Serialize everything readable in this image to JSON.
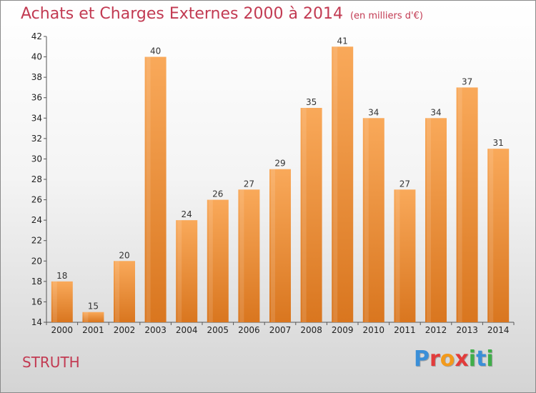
{
  "header": {
    "title": "Achats et Charges Externes 2000 à 2014",
    "subtitle": "(en milliers d'€)"
  },
  "footer": {
    "commune": "STRUTH",
    "logo_letters": [
      "P",
      "r",
      "o",
      "x",
      "i",
      "t",
      "i"
    ]
  },
  "colors": {
    "title": "#c23a52",
    "bar_top": "#f9a95a",
    "bar_bottom": "#d9761f",
    "logo": [
      "#3a8fd8",
      "#e23b3b",
      "#f39a1b",
      "#e23b3b",
      "#3fae49",
      "#3a8fd8",
      "#3fae49"
    ]
  },
  "chart_data": {
    "type": "bar",
    "title": "Achats et Charges Externes 2000 à 2014",
    "subtitle": "(en milliers d'€)",
    "categories": [
      "2000",
      "2001",
      "2002",
      "2003",
      "2004",
      "2005",
      "2006",
      "2007",
      "2008",
      "2009",
      "2010",
      "2011",
      "2012",
      "2013",
      "2014"
    ],
    "values": [
      18,
      15,
      20,
      40,
      24,
      26,
      27,
      29,
      35,
      41,
      34,
      27,
      34,
      37,
      31
    ],
    "ylim": [
      14,
      42
    ],
    "yticks": [
      14,
      16,
      18,
      20,
      22,
      24,
      26,
      28,
      30,
      32,
      34,
      36,
      38,
      40,
      42
    ],
    "grid": false,
    "legend": "none",
    "data_labels": true
  }
}
